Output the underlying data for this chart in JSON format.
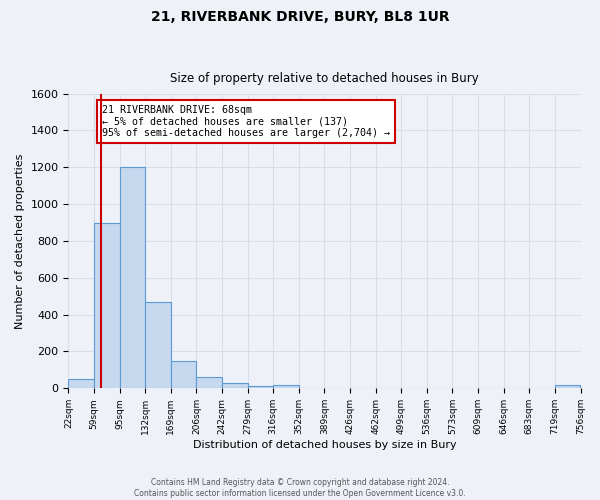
{
  "title": "21, RIVERBANK DRIVE, BURY, BL8 1UR",
  "subtitle": "Size of property relative to detached houses in Bury",
  "xlabel": "Distribution of detached houses by size in Bury",
  "ylabel": "Number of detached properties",
  "num_bins": 20,
  "bin_labels": [
    "22sqm",
    "59sqm",
    "95sqm",
    "132sqm",
    "169sqm",
    "206sqm",
    "242sqm",
    "279sqm",
    "316sqm",
    "352sqm",
    "389sqm",
    "426sqm",
    "462sqm",
    "499sqm",
    "536sqm",
    "573sqm",
    "609sqm",
    "646sqm",
    "683sqm",
    "719sqm",
    "756sqm"
  ],
  "bar_heights": [
    50,
    900,
    1200,
    470,
    150,
    60,
    30,
    15,
    20,
    0,
    0,
    0,
    0,
    0,
    0,
    0,
    0,
    0,
    0,
    20
  ],
  "bar_color": "#c5d8ee",
  "bar_edge_color": "#5b9bd5",
  "ylim": [
    0,
    1600
  ],
  "yticks": [
    0,
    200,
    400,
    600,
    800,
    1000,
    1200,
    1400,
    1600
  ],
  "vline_bin": 1.27,
  "vline_color": "#cc0000",
  "annotation_text": "21 RIVERBANK DRIVE: 68sqm\n← 5% of detached houses are smaller (137)\n95% of semi-detached houses are larger (2,704) →",
  "annotation_box_color": "#ffffff",
  "annotation_box_edge": "#cc0000",
  "footer1": "Contains HM Land Registry data © Crown copyright and database right 2024.",
  "footer2": "Contains public sector information licensed under the Open Government Licence v3.0.",
  "background_color": "#eef2f8",
  "grid_color": "#d8dde8"
}
